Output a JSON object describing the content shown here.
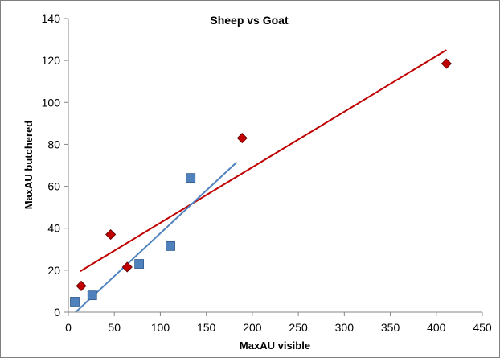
{
  "chart_data": {
    "type": "scatter",
    "title": "Sheep vs Goat",
    "xlabel": "MaxAU visible",
    "ylabel": "MaxAU butchered",
    "xlim": [
      0,
      450
    ],
    "ylim": [
      0,
      140
    ],
    "xticks": [
      0,
      50,
      100,
      150,
      200,
      250,
      300,
      350,
      400,
      450
    ],
    "yticks": [
      0,
      20,
      40,
      60,
      80,
      100,
      120,
      140
    ],
    "grid": false,
    "legend": "none",
    "series": [
      {
        "marker": "diamond",
        "color": "#c00000",
        "points": [
          [
            14,
            12.5
          ],
          [
            46,
            37
          ],
          [
            64,
            21.5
          ],
          [
            189,
            83
          ],
          [
            411,
            118.5
          ]
        ],
        "trendline": {
          "x": [
            13,
            411
          ],
          "y": [
            19.5,
            125
          ],
          "color": "#c00000"
        }
      },
      {
        "marker": "square",
        "color": "#4f81bd",
        "points": [
          [
            7,
            5
          ],
          [
            26,
            8
          ],
          [
            77,
            23
          ],
          [
            111,
            31.5
          ],
          [
            133,
            64
          ]
        ],
        "trendline": {
          "x": [
            8,
            183
          ],
          "y": [
            0,
            71.5
          ],
          "color": "#4f81bd"
        }
      }
    ]
  }
}
